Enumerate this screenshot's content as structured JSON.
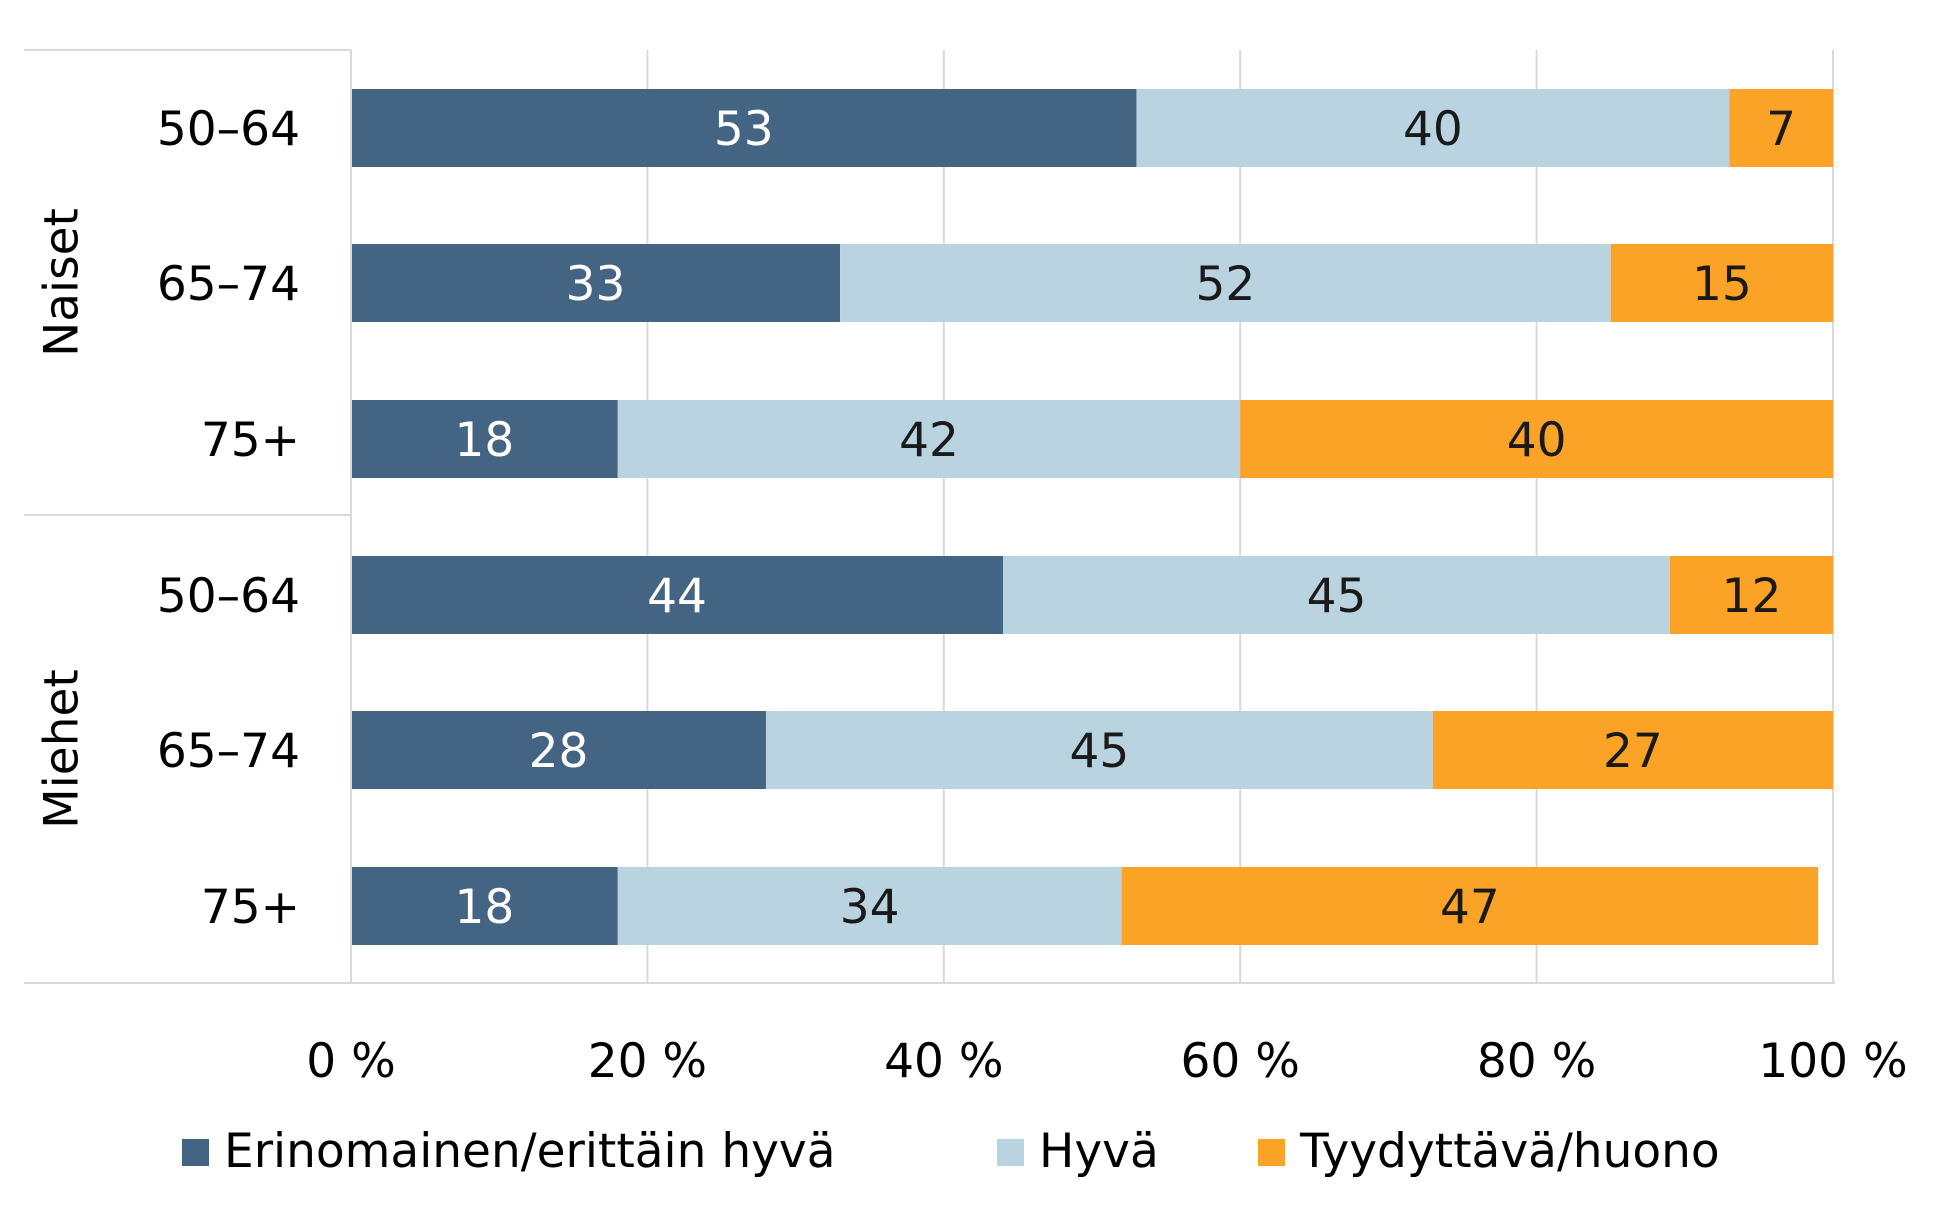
{
  "chart_data": {
    "type": "bar",
    "orientation": "horizontal",
    "stacked": true,
    "percent_stacked": true,
    "title": "",
    "xlabel": "",
    "ylabel": "",
    "xlim": [
      0,
      100
    ],
    "grid": true,
    "legend_position": "bottom",
    "x_ticks": [
      "0 %",
      "20 %",
      "40 %",
      "60 %",
      "80 %",
      "100 %"
    ],
    "groups": [
      {
        "label": "Naiset",
        "categories": [
          "50–64",
          "65–74",
          "75+"
        ]
      },
      {
        "label": "Miehet",
        "categories": [
          "50–64",
          "65–74",
          "75+"
        ]
      }
    ],
    "series": [
      {
        "name": "Erinomainen/erittäin hyvä",
        "color": "#436482",
        "label_color": "#ffffff",
        "values": [
          53,
          33,
          18,
          44,
          28,
          18
        ]
      },
      {
        "name": "Hyvä",
        "color": "#bad3e1",
        "label_color": "#1a1a1a",
        "values": [
          40,
          52,
          42,
          45,
          45,
          34
        ]
      },
      {
        "name": "Tyydyttävä/huono",
        "color": "#fba326",
        "label_color": "#1a1a1a",
        "values": [
          7,
          15,
          40,
          12,
          27,
          47
        ]
      }
    ]
  }
}
